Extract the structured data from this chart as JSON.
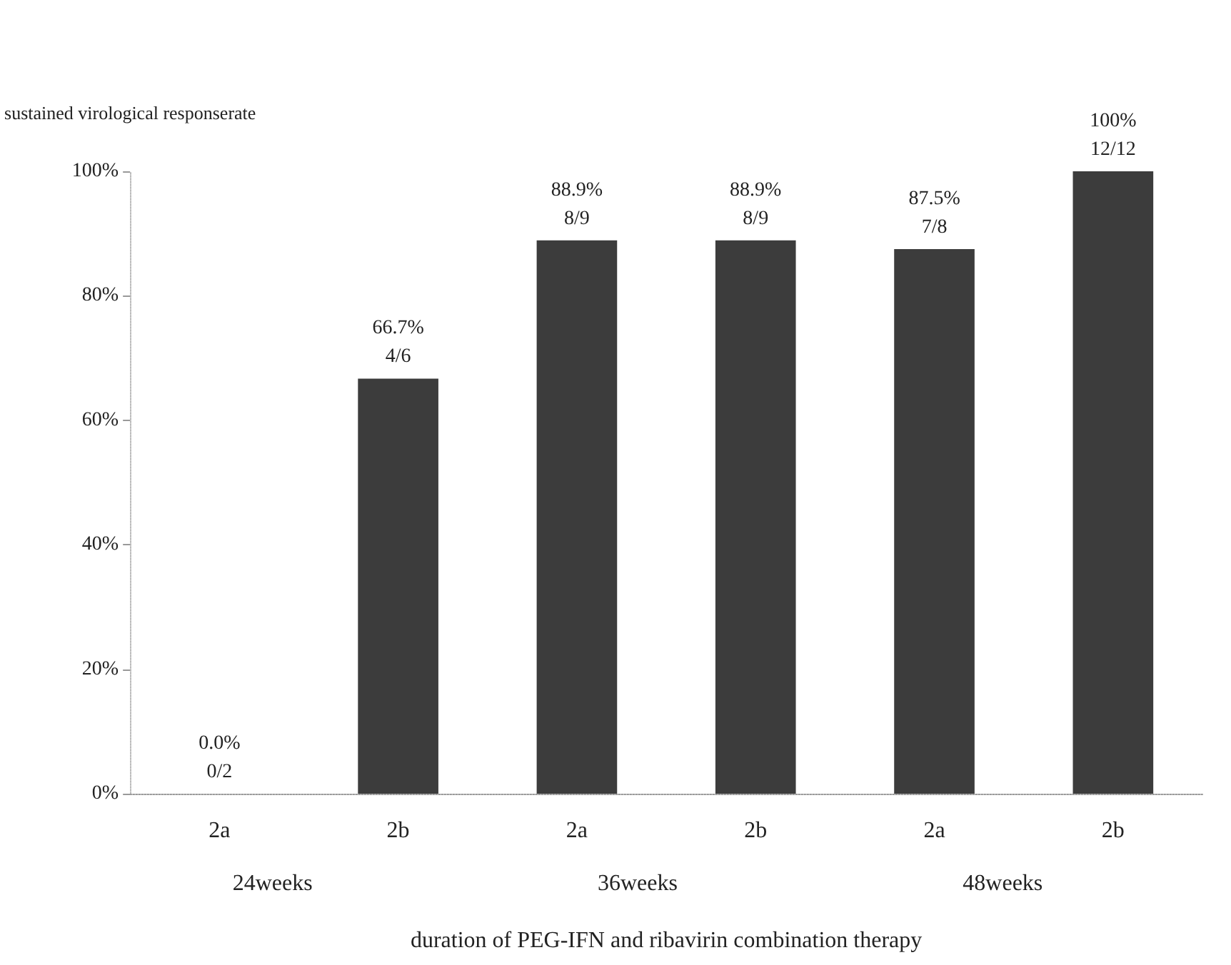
{
  "chart_data": {
    "type": "bar",
    "categories": [
      "2a",
      "2b",
      "2a",
      "2b",
      "2a",
      "2b"
    ],
    "values": [
      0,
      66.7,
      88.9,
      88.9,
      87.5,
      100
    ],
    "value_labels": [
      "0.0%\n0/2",
      "66.7%\n4/6",
      "88.9%\n8/9",
      "88.9%\n8/9",
      "87.5%\n7/8",
      "100%\n12/12"
    ],
    "color": "#3c3c3c",
    "ylim": [
      0,
      100
    ],
    "yticks": [
      {
        "value": 0,
        "label": "0%"
      },
      {
        "value": 20,
        "label": "20%"
      },
      {
        "value": 40,
        "label": "40%"
      },
      {
        "value": 60,
        "label": "60%"
      },
      {
        "value": 80,
        "label": "80%"
      },
      {
        "value": 100,
        "label": "100%"
      }
    ],
    "ylabel": "sustained virological responserate",
    "xlabel": "duration of PEG-IFN and ribavirin combination therapy",
    "annotations": [
      "24weeks",
      "36weeks",
      "48weeks"
    ],
    "grid": false
  }
}
